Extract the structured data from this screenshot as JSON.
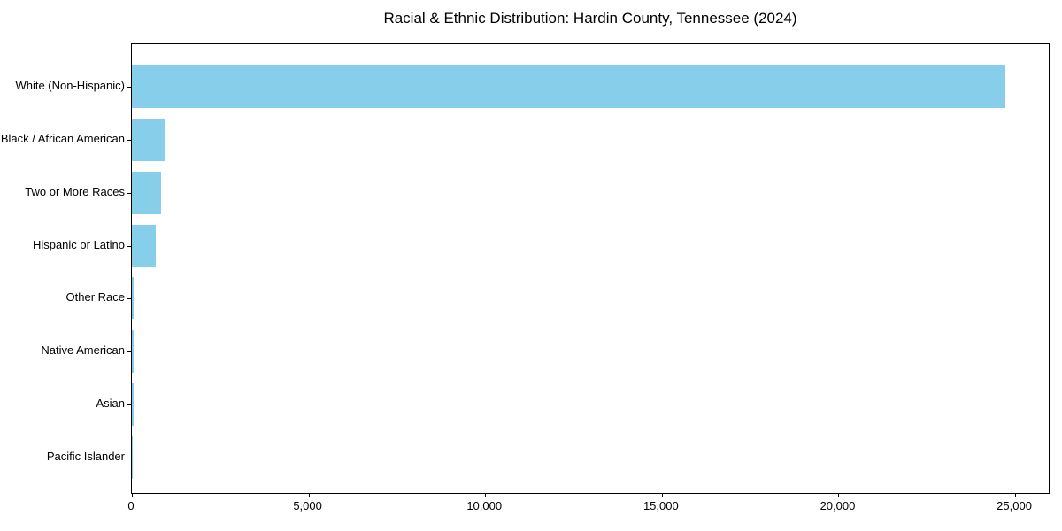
{
  "chart_data": {
    "type": "bar",
    "orientation": "horizontal",
    "title": "Racial & Ethnic Distribution: Hardin County, Tennessee (2024)",
    "categories": [
      "White (Non-Hispanic)",
      "Black / African American",
      "Two or More Races",
      "Hispanic or Latino",
      "Other Race",
      "Native American",
      "Asian",
      "Pacific Islander"
    ],
    "values": [
      24727,
      915,
      815,
      670,
      60,
      50,
      40,
      10
    ],
    "xlabel": "",
    "ylabel": "",
    "xlim": [
      0,
      26000
    ],
    "xticks": [
      0,
      5000,
      10000,
      15000,
      20000,
      25000
    ],
    "xtick_labels": [
      "0",
      "5,000",
      "10,000",
      "15,000",
      "20,000",
      "25,000"
    ],
    "bar_color": "#87CEEB",
    "text_color": "#000000",
    "background_color": "#ffffff",
    "grid": false,
    "legend": null,
    "sort_order": "descending"
  }
}
